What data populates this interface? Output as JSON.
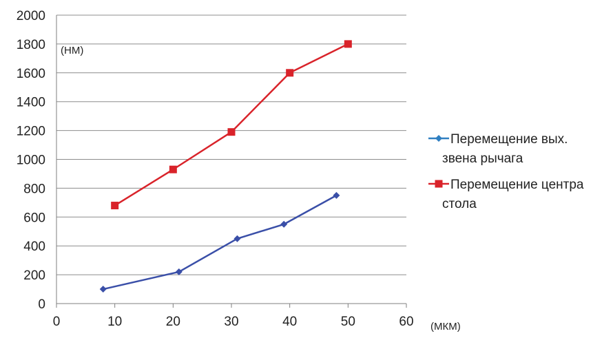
{
  "chart_data": {
    "type": "line",
    "title": "",
    "xlabel": "(МКМ)",
    "ylabel": "(НМ)",
    "xlim": [
      0,
      60
    ],
    "ylim": [
      0,
      2000
    ],
    "x_ticks": [
      0,
      10,
      20,
      30,
      40,
      50,
      60
    ],
    "y_ticks": [
      0,
      200,
      400,
      600,
      800,
      1000,
      1200,
      1400,
      1600,
      1800,
      2000
    ],
    "grid": "horizontal",
    "legend_position": "right",
    "series": [
      {
        "legend_lines": [
          "Перемещение вых.",
          "звена рычага"
        ],
        "color": "#3a4fa8",
        "legend_color": "#2f7fc1",
        "marker": "diamond",
        "points": [
          [
            8,
            100
          ],
          [
            21,
            220
          ],
          [
            31,
            450
          ],
          [
            39,
            550
          ],
          [
            48,
            750
          ]
        ]
      },
      {
        "legend_lines": [
          "Перемещение центра",
          "стола"
        ],
        "color": "#d9232a",
        "legend_color": "#d9232a",
        "marker": "square",
        "points": [
          [
            10,
            680
          ],
          [
            20,
            930
          ],
          [
            30,
            1190
          ],
          [
            40,
            1600
          ],
          [
            50,
            1800
          ]
        ]
      }
    ]
  }
}
